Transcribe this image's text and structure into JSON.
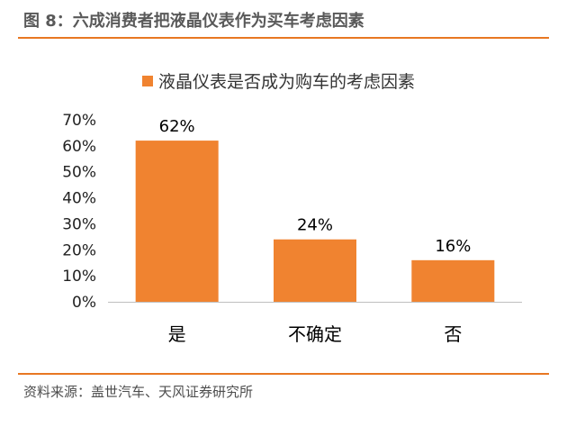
{
  "figure": {
    "title": "图 8：六成消费者把液晶仪表作为买车考虑因素",
    "source": "资料来源：盖世汽车、天风证券研究所"
  },
  "colors": {
    "bar": "#f08330",
    "rule": "#e87722",
    "axis": "#bfbfbf"
  },
  "chart_data": {
    "type": "bar",
    "categories": [
      "是",
      "不确定",
      "否"
    ],
    "series": [
      {
        "name": "液晶仪表是否成为购车的考虑因素",
        "values": [
          62,
          24,
          16
        ]
      }
    ],
    "data_labels": [
      "62%",
      "24%",
      "16%"
    ],
    "y_ticks": [
      "0%",
      "10%",
      "20%",
      "30%",
      "40%",
      "50%",
      "60%",
      "70%"
    ],
    "ylim": [
      0,
      70
    ],
    "grid": false,
    "legend_position": "top"
  }
}
